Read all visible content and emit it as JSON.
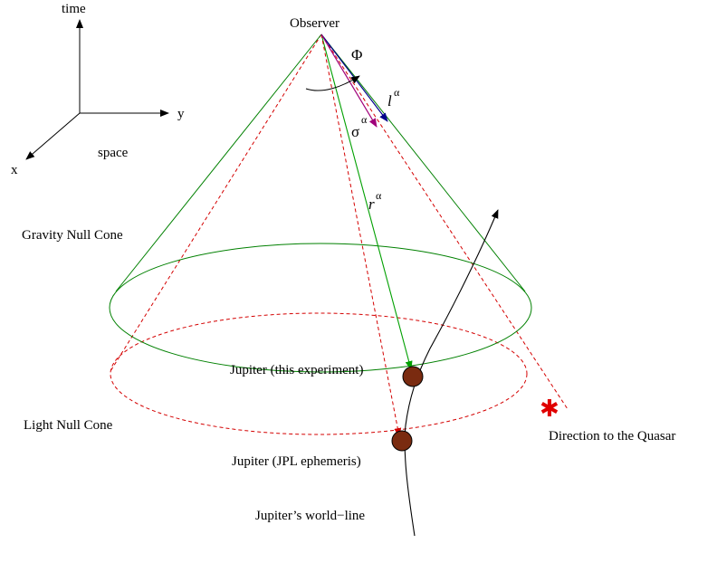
{
  "axes": {
    "time": "time",
    "y": "y",
    "x": "x",
    "space": "space"
  },
  "labels": {
    "observer": "Observer",
    "gravity_cone": "Gravity Null Cone",
    "light_cone": "Light Null Cone",
    "jupiter_experiment": "Jupiter (this experiment)",
    "jupiter_jpl": "Jupiter (JPL ephemeris)",
    "world_line": "Jupiter’s world−line",
    "quasar_direction": "Direction to the Quasar"
  },
  "symbols": {
    "phi": "Φ",
    "l": "l",
    "sigma": "σ",
    "r": "r",
    "alpha": "α",
    "quasar_marker": "✱"
  },
  "colors": {
    "gravity_cone": "#008000",
    "light_cone": "#d40000",
    "l_vector": "#00008b",
    "sigma_vector": "#a0007a",
    "r_vector": "#00a000",
    "jupiter": "#7a2b10",
    "world_line": "#000000",
    "quasar": "#e00000"
  }
}
